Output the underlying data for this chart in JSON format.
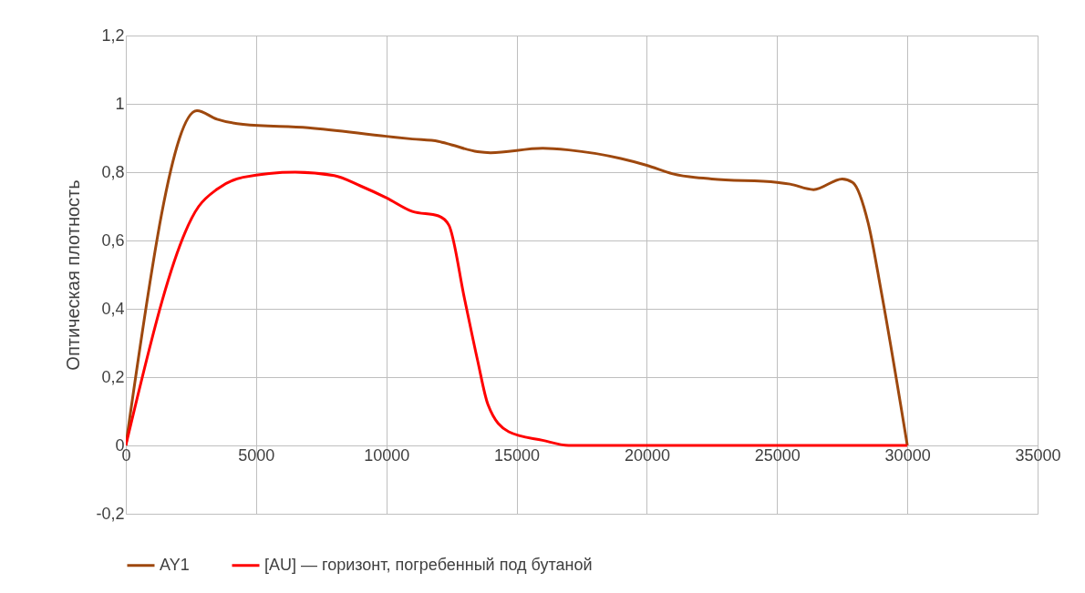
{
  "chart_data": {
    "type": "line",
    "ylabel": "Оптическая плотность",
    "xlim": [
      0,
      35000
    ],
    "xticks": [
      0,
      5000,
      10000,
      15000,
      20000,
      25000,
      30000,
      35000
    ],
    "ylim": [
      -0.2,
      1.2
    ],
    "yticks": [
      {
        "value": -0.2,
        "label": "-0,2"
      },
      {
        "value": 0,
        "label": "0"
      },
      {
        "value": 0.2,
        "label": "0,2"
      },
      {
        "value": 0.4,
        "label": "0,4"
      },
      {
        "value": 0.6,
        "label": "0,6"
      },
      {
        "value": 0.8,
        "label": "0,8"
      },
      {
        "value": 1,
        "label": "1"
      },
      {
        "value": 1.2,
        "label": "1,2"
      }
    ],
    "grid": true,
    "legend": "bottom",
    "line_style": "solid",
    "marker": "none",
    "series": [
      {
        "name": "AY1",
        "color": "#9e480e",
        "x": [
          0,
          2730,
          3500,
          4500,
          7000,
          10000,
          11000,
          12000,
          12500,
          13500,
          14000,
          16000,
          17000,
          19000,
          20000,
          21000,
          22500,
          25000,
          25500,
          26400,
          27500,
          27900,
          28500,
          29000,
          30000
        ],
        "values": [
          0,
          0.98,
          0.955,
          0.94,
          0.93,
          0.905,
          0.897,
          0.89,
          0.88,
          0.86,
          0.857,
          0.87,
          0.865,
          0.84,
          0.82,
          0.795,
          0.78,
          0.77,
          0.765,
          0.749,
          0.78,
          0.77,
          0.65,
          0.45,
          0
        ]
      },
      {
        "name": "[AU] — горизонт, погребенный под бутаной",
        "color": "#ff0000",
        "x": [
          0,
          2800,
          3500,
          4500,
          6500,
          8000,
          9000,
          10000,
          11000,
          12000,
          12400,
          13000,
          13500,
          13900,
          14700,
          16000,
          17000,
          30000
        ],
        "values": [
          0,
          0.7,
          0.75,
          0.785,
          0.8,
          0.79,
          0.76,
          0.725,
          0.685,
          0.672,
          0.645,
          0.43,
          0.25,
          0.12,
          0.04,
          0.015,
          0,
          0
        ]
      }
    ]
  }
}
